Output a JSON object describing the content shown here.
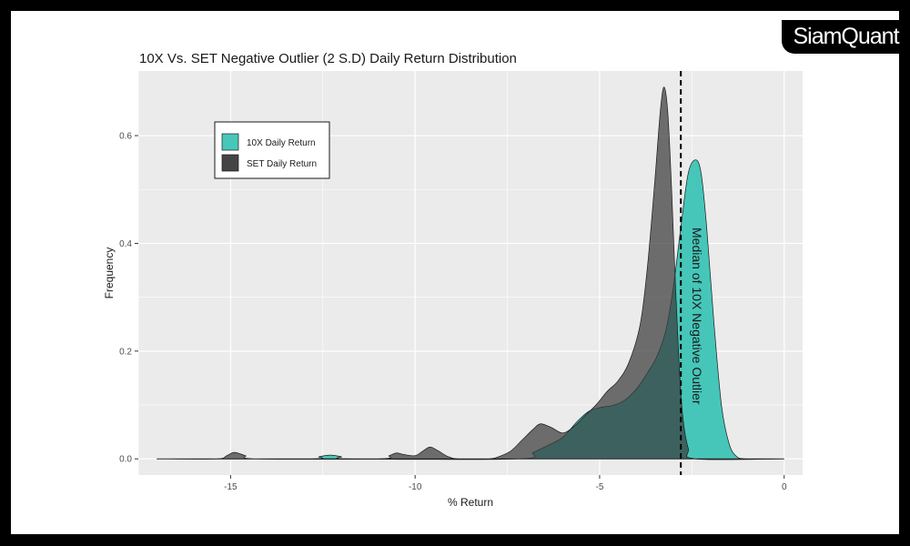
{
  "brand": "SiamQuant",
  "chart_data": {
    "type": "area",
    "title": "10X Vs. SET Negative Outlier (2 S.D) Daily Return Distribution",
    "xlabel": "% Return",
    "ylabel": "Frequency",
    "xlim": [
      -17.5,
      0.5
    ],
    "ylim": [
      -0.03,
      0.72
    ],
    "x_ticks": [
      -15,
      -10,
      -5,
      0
    ],
    "x_tick_labels": [
      "-15",
      "-10",
      "-5",
      "0"
    ],
    "y_ticks": [
      0.0,
      0.2,
      0.4,
      0.6
    ],
    "y_tick_labels": [
      "0.0",
      "0.2",
      "0.4",
      "0.6"
    ],
    "grid": true,
    "legend_position": "top-left",
    "series": [
      {
        "name": "10X Daily Return",
        "color": "#3dc4b6",
        "points": [
          [
            -17,
            0.0
          ],
          [
            -12.9,
            0.0
          ],
          [
            -12.6,
            0.004
          ],
          [
            -12.3,
            0.007
          ],
          [
            -12.0,
            0.004
          ],
          [
            -11.7,
            0.0
          ],
          [
            -7.2,
            0.0
          ],
          [
            -6.8,
            0.012
          ],
          [
            -6.4,
            0.025
          ],
          [
            -6.0,
            0.04
          ],
          [
            -5.6,
            0.07
          ],
          [
            -5.3,
            0.088
          ],
          [
            -5.0,
            0.095
          ],
          [
            -4.6,
            0.1
          ],
          [
            -4.3,
            0.11
          ],
          [
            -4.0,
            0.13
          ],
          [
            -3.7,
            0.16
          ],
          [
            -3.45,
            0.19
          ],
          [
            -3.2,
            0.24
          ],
          [
            -3.0,
            0.32
          ],
          [
            -2.8,
            0.43
          ],
          [
            -2.6,
            0.53
          ],
          [
            -2.4,
            0.555
          ],
          [
            -2.25,
            0.53
          ],
          [
            -2.1,
            0.43
          ],
          [
            -1.9,
            0.25
          ],
          [
            -1.7,
            0.1
          ],
          [
            -1.5,
            0.03
          ],
          [
            -1.3,
            0.005
          ],
          [
            -1.0,
            0.0
          ],
          [
            0.0,
            0.0
          ]
        ]
      },
      {
        "name": "SET Daily Return",
        "color": "#3a3a3a",
        "points": [
          [
            -17,
            0.0
          ],
          [
            -15.4,
            0.0
          ],
          [
            -15.1,
            0.006
          ],
          [
            -14.9,
            0.012
          ],
          [
            -14.6,
            0.006
          ],
          [
            -14.3,
            0.0
          ],
          [
            -11.0,
            0.0
          ],
          [
            -10.7,
            0.006
          ],
          [
            -10.5,
            0.011
          ],
          [
            -10.3,
            0.008
          ],
          [
            -10.0,
            0.006
          ],
          [
            -9.8,
            0.014
          ],
          [
            -9.6,
            0.022
          ],
          [
            -9.4,
            0.016
          ],
          [
            -9.1,
            0.004
          ],
          [
            -8.8,
            0.0
          ],
          [
            -8.0,
            0.0
          ],
          [
            -7.7,
            0.005
          ],
          [
            -7.4,
            0.015
          ],
          [
            -7.1,
            0.035
          ],
          [
            -6.8,
            0.055
          ],
          [
            -6.6,
            0.065
          ],
          [
            -6.3,
            0.058
          ],
          [
            -6.0,
            0.048
          ],
          [
            -5.7,
            0.06
          ],
          [
            -5.4,
            0.08
          ],
          [
            -5.1,
            0.1
          ],
          [
            -4.8,
            0.125
          ],
          [
            -4.5,
            0.145
          ],
          [
            -4.2,
            0.18
          ],
          [
            -3.9,
            0.25
          ],
          [
            -3.7,
            0.36
          ],
          [
            -3.5,
            0.52
          ],
          [
            -3.35,
            0.65
          ],
          [
            -3.25,
            0.69
          ],
          [
            -3.15,
            0.64
          ],
          [
            -3.05,
            0.5
          ],
          [
            -2.95,
            0.33
          ],
          [
            -2.85,
            0.18
          ],
          [
            -2.75,
            0.08
          ],
          [
            -2.6,
            0.02
          ],
          [
            -2.4,
            0.0
          ],
          [
            0.0,
            0.0
          ]
        ]
      }
    ],
    "vline": {
      "x": -2.8,
      "style": "dashed",
      "label": "Median of 10X Negative Outlier"
    }
  }
}
